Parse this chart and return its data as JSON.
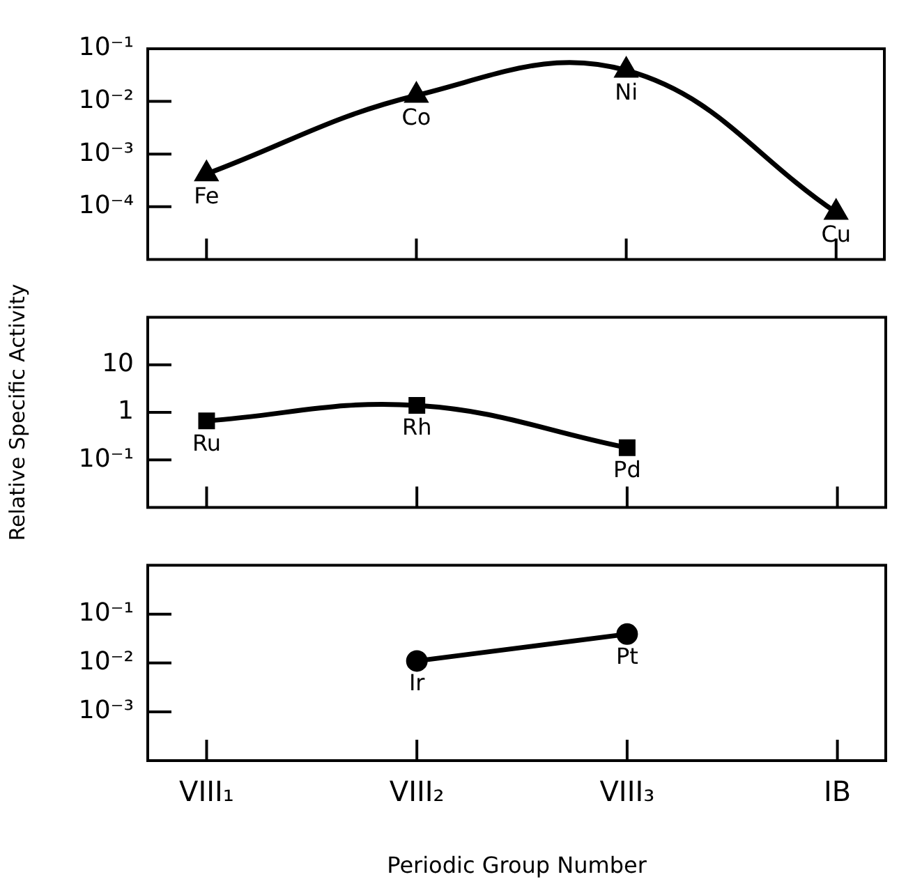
{
  "chart_data": [
    {
      "type": "line",
      "marker": "triangle",
      "log": "y",
      "tick_labels": "y",
      "categories": [
        "VIII₁",
        "VIII₂",
        "VIII₃",
        "IB"
      ],
      "ylim": [
        1e-05,
        0.1
      ],
      "yticks": [
        {
          "value": 0.1,
          "label": "10⁻¹"
        },
        {
          "value": 0.01,
          "label": "10⁻²"
        },
        {
          "value": 0.001,
          "label": "10⁻³"
        },
        {
          "value": 0.0001,
          "label": "10⁻⁴"
        }
      ],
      "series": [
        {
          "color": "#000000",
          "values": [
            0.00042,
            0.013,
            0.039,
            7.8e-05
          ]
        }
      ],
      "annotations": [
        {
          "text": "Fe",
          "x": "VIII₁",
          "y": 0.00042
        },
        {
          "text": "Co",
          "x": "VIII₂",
          "y": 0.013
        },
        {
          "text": "Ni",
          "x": "VIII₃",
          "y": 0.039
        },
        {
          "text": "Cu",
          "x": "IB",
          "y": 7.8e-05
        }
      ]
    },
    {
      "type": "line",
      "marker": "square",
      "log": "y",
      "tick_labels": "y",
      "categories": [
        "VIII₁",
        "VIII₂",
        "VIII₃",
        "IB"
      ],
      "ylim": [
        0.01,
        100
      ],
      "yticks": [
        10,
        1,
        {
          "value": 0.1,
          "label": "10⁻¹"
        }
      ],
      "ylabel": "Relative Specific Activity",
      "series": [
        {
          "color": "#000000",
          "values": [
            0.66,
            1.4,
            0.18,
            null
          ]
        }
      ],
      "annotations": [
        {
          "text": "Ru",
          "x": "VIII₁",
          "y": 0.66
        },
        {
          "text": "Rh",
          "x": "VIII₂",
          "y": 1.4
        },
        {
          "text": "Pd",
          "x": "VIII₃",
          "y": 0.18
        }
      ]
    },
    {
      "type": "line",
      "marker": "circle",
      "log": "y",
      "categories": [
        "VIII₁",
        "VIII₂",
        "VIII₃",
        "IB"
      ],
      "ylim": [
        0.0001,
        1
      ],
      "yticks": [
        {
          "value": 0.1,
          "label": "10⁻¹"
        },
        {
          "value": 0.01,
          "label": "10⁻²"
        },
        {
          "value": 0.001,
          "label": "10⁻³"
        }
      ],
      "xlabel": "Periodic Group Number",
      "series": [
        {
          "color": "#000000",
          "values": [
            null,
            0.011,
            0.039,
            null
          ]
        }
      ],
      "annotations": [
        {
          "text": "Ir",
          "x": "VIII₂",
          "y": 0.011
        },
        {
          "text": "Pt",
          "x": "VIII₃",
          "y": 0.039
        }
      ]
    }
  ]
}
